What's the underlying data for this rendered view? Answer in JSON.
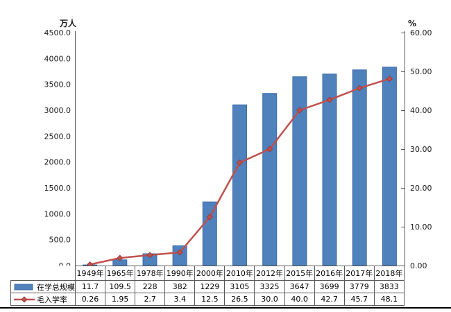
{
  "chart_data": {
    "type": "bar+line combo",
    "title": "",
    "categories": [
      "1949年",
      "1965年",
      "1978年",
      "1990年",
      "2000年",
      "2010年",
      "2012年",
      "2015年",
      "2016年",
      "2017年",
      "2018年"
    ],
    "series": [
      {
        "name": "在学总规模",
        "type": "bar",
        "axis": "left",
        "color": "#4f81bd",
        "border_color": "#3c6ca8",
        "values": [
          11.7,
          109.5,
          228,
          382,
          1229,
          3105,
          3325,
          3647,
          3699,
          3779,
          3833
        ]
      },
      {
        "name": "毛入学率",
        "type": "line",
        "axis": "right",
        "color": "#c0504d",
        "marker": "diamond",
        "marker_color": "#c0504d",
        "values": [
          0.26,
          1.95,
          2.7,
          3.4,
          12.5,
          26.5,
          30.0,
          40.0,
          42.7,
          45.7,
          48.1
        ]
      }
    ],
    "left_axis": {
      "title": "万人",
      "min": 0,
      "max": 4500,
      "step": 500,
      "tick_labels": [
        "4500.0",
        "4000.0",
        "3500.0",
        "3000.0",
        "2500.0",
        "2000.0",
        "1500.0",
        "1000.0",
        "500.0",
        "0.0"
      ]
    },
    "right_axis": {
      "title": "%",
      "min": 0,
      "max": 60,
      "step": 10,
      "tick_labels": [
        "60.00",
        "50.00",
        "40.00",
        "30.00",
        "20.00",
        "10.00",
        "0.00"
      ]
    },
    "grid": false,
    "legend_position": "table-left"
  },
  "table": {
    "rows": [
      {
        "label": "在学总规模",
        "swatch": "bar",
        "values": [
          "11.7",
          "109.5",
          "228",
          "382",
          "1229",
          "3105",
          "3325",
          "3647",
          "3699",
          "3779",
          "3833"
        ]
      },
      {
        "label": "毛入学率",
        "swatch": "line",
        "values": [
          "0.26",
          "1.95",
          "2.7",
          "3.4",
          "12.5",
          "26.5",
          "30.0",
          "40.0",
          "42.7",
          "45.7",
          "48.1"
        ]
      }
    ]
  },
  "colors": {
    "bar_fill": "#4f81bd",
    "bar_border": "#3c6ca8",
    "line": "#c0504d",
    "axis": "#595959",
    "table_border": "#595959",
    "bottom_rule": "#000000"
  }
}
